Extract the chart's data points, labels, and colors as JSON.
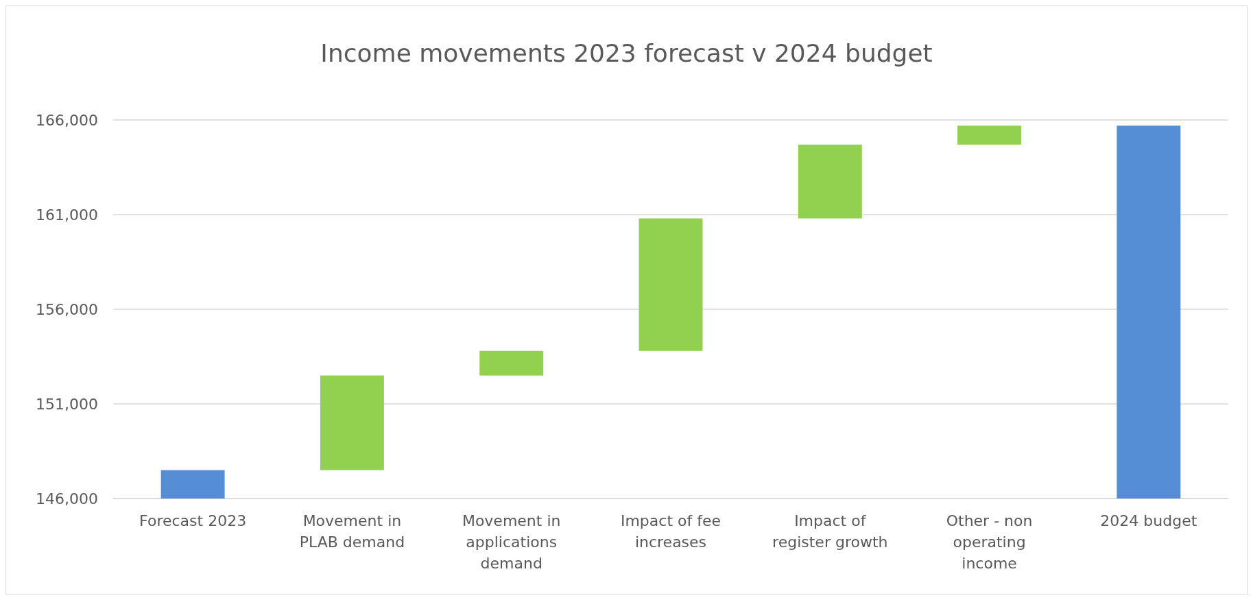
{
  "chart_data": {
    "type": "bar",
    "title": "Income movements 2023 forecast v 2024 budget",
    "categories": [
      "Forecast 2023",
      "Movement in PLAB demand",
      "Movement in applications demand",
      "Impact of fee increases",
      "Impact of register growth",
      "Other - non operating income",
      "2024 budget"
    ],
    "values": [
      147500,
      5000,
      1300,
      7000,
      3900,
      1000,
      165700
    ],
    "base": [
      null,
      147500,
      152500,
      153800,
      160800,
      164700,
      null
    ],
    "colors": [
      "#558ed5",
      "#92d050",
      "#92d050",
      "#92d050",
      "#92d050",
      "#92d050",
      "#558ed5"
    ],
    "ylim": [
      146000,
      166000
    ],
    "yticks": [
      {
        "value": 146000,
        "label": "146,000"
      },
      {
        "value": 151000,
        "label": "151,000"
      },
      {
        "value": 156000,
        "label": "156,000"
      },
      {
        "value": 161000,
        "label": "161,000"
      },
      {
        "value": 166000,
        "label": "166,000"
      }
    ],
    "grid": "y"
  }
}
